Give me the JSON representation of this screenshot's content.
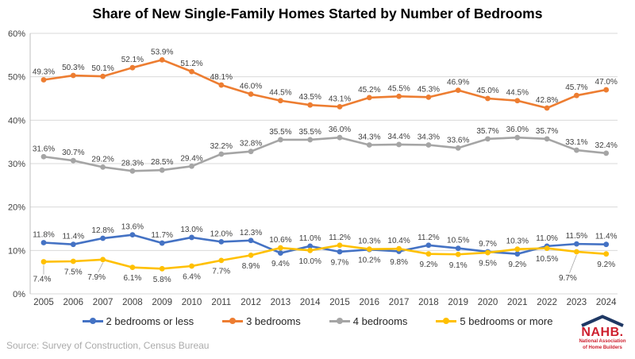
{
  "title": "Share of New Single-Family Homes Started by Number of Bedrooms",
  "source": "Source: Survey of Construction, Census Bureau",
  "logo": {
    "name": "NAHB.",
    "line1": "National Association",
    "line2": "of Home Builders",
    "red": "#CE202F",
    "blue": "#1F3864"
  },
  "chart_data": {
    "type": "line",
    "title": "Share of New Single-Family Homes Started by Number of Bedrooms",
    "x": [
      "2005",
      "2006",
      "2007",
      "2008",
      "2009",
      "2010",
      "2011",
      "2012",
      "2013",
      "2014",
      "2015",
      "2016",
      "2017",
      "2018",
      "2019",
      "2020",
      "2021",
      "2022",
      "2023",
      "2024"
    ],
    "series": [
      {
        "name": "2 bedrooms or less",
        "color": "#4472C4",
        "values": [
          11.8,
          11.4,
          12.8,
          13.6,
          11.7,
          13.0,
          12.0,
          12.3,
          9.4,
          11.0,
          9.7,
          10.2,
          9.8,
          11.2,
          10.5,
          9.7,
          9.2,
          11.0,
          11.5,
          11.4
        ]
      },
      {
        "name": "3 bedrooms",
        "color": "#ED7D31",
        "values": [
          49.3,
          50.3,
          50.1,
          52.1,
          53.9,
          51.2,
          48.1,
          46.0,
          44.5,
          43.5,
          43.1,
          45.2,
          45.5,
          45.3,
          46.9,
          45.0,
          44.5,
          42.8,
          45.7,
          47.0
        ]
      },
      {
        "name": "4 bedrooms",
        "color": "#A5A5A5",
        "values": [
          31.6,
          30.7,
          29.2,
          28.3,
          28.5,
          29.4,
          32.2,
          32.8,
          35.5,
          35.5,
          36.0,
          34.3,
          34.4,
          34.3,
          33.6,
          35.7,
          36.0,
          35.7,
          33.1,
          32.4
        ]
      },
      {
        "name": "5 bedrooms or more",
        "color": "#FFC000",
        "values": [
          7.4,
          7.5,
          7.9,
          6.1,
          5.8,
          6.4,
          7.7,
          8.9,
          10.6,
          10.0,
          11.2,
          10.3,
          10.4,
          9.2,
          9.1,
          9.5,
          10.3,
          10.5,
          9.7,
          9.2
        ]
      }
    ],
    "ylim": [
      0,
      60
    ],
    "yticks": [
      "0%",
      "10%",
      "20%",
      "30%",
      "40%",
      "50%",
      "60%"
    ],
    "grid": true,
    "legend_position": "bottom",
    "data_labels": true
  }
}
